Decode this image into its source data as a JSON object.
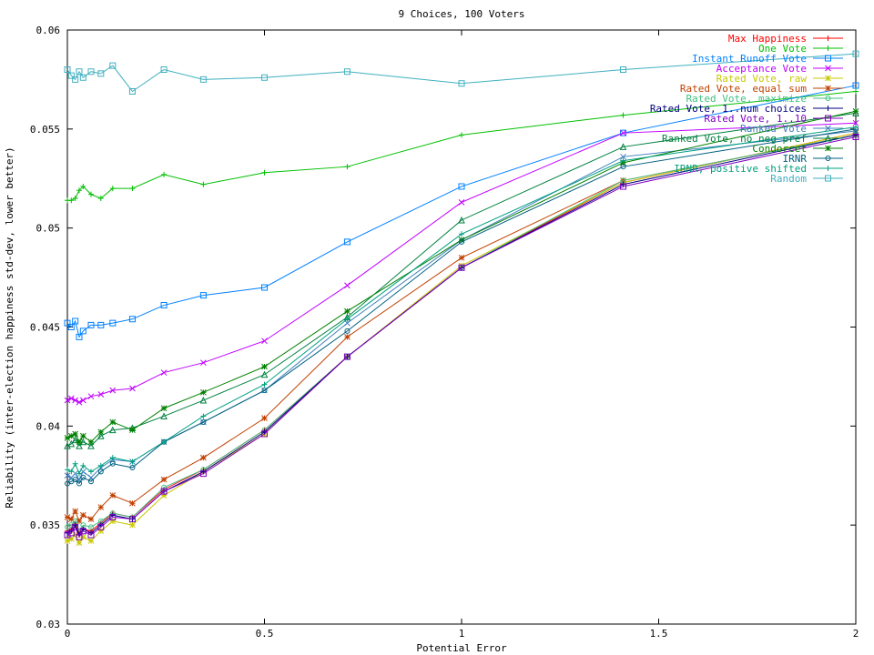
{
  "chart_data": {
    "type": "line",
    "title": "9 Choices, 100 Voters",
    "xlabel": "Potential Error",
    "ylabel": "Reliability (inter-election happiness std-dev, lower better)",
    "xlim": [
      0,
      2
    ],
    "ylim": [
      0.03,
      0.06
    ],
    "x_ticks": [
      "0",
      "0.5",
      "1",
      "1.5",
      "2"
    ],
    "y_ticks": [
      "0.03",
      "0.035",
      "0.04",
      "0.045",
      "0.05",
      "0.055",
      "0.06"
    ],
    "grid": false,
    "legend_position": "top-right",
    "x": [
      0,
      0.01,
      0.02,
      0.03,
      0.04,
      0.06,
      0.085,
      0.115,
      0.165,
      0.245,
      0.345,
      0.5,
      0.71,
      1.0,
      1.41,
      2.0
    ],
    "series": [
      {
        "name": "Max Happiness",
        "color": "#ff0000",
        "marker": "plus",
        "values": [
          0.0347,
          0.0348,
          0.0351,
          0.0346,
          0.0348,
          0.0347,
          0.0351,
          0.0356,
          0.0354,
          0.0368,
          0.0378,
          0.0398,
          0.0435,
          0.048,
          0.0523,
          0.0548
        ]
      },
      {
        "name": "One Vote",
        "color": "#00c000",
        "marker": "plus",
        "values": [
          0.0514,
          0.0514,
          0.0515,
          0.0519,
          0.0521,
          0.0517,
          0.0515,
          0.052,
          0.052,
          0.0527,
          0.0522,
          0.0528,
          0.0531,
          0.0547,
          0.0557,
          0.0569
        ]
      },
      {
        "name": "Instant Runoff Vote",
        "color": "#0080ff",
        "marker": "square",
        "values": [
          0.0452,
          0.045,
          0.0453,
          0.0445,
          0.0448,
          0.0451,
          0.0451,
          0.0452,
          0.0454,
          0.0461,
          0.0466,
          0.047,
          0.0493,
          0.0521,
          0.0548,
          0.0572
        ]
      },
      {
        "name": "Acceptance Vote",
        "color": "#c000ff",
        "marker": "x",
        "values": [
          0.0413,
          0.0414,
          0.0413,
          0.0412,
          0.0413,
          0.0415,
          0.0416,
          0.0418,
          0.0419,
          0.0427,
          0.0432,
          0.0443,
          0.0471,
          0.0513,
          0.0548,
          0.0553
        ]
      },
      {
        "name": "Rated Vote, raw",
        "color": "#c8c800",
        "marker": "star",
        "values": [
          0.0342,
          0.0343,
          0.0345,
          0.0341,
          0.0344,
          0.0342,
          0.0347,
          0.0352,
          0.035,
          0.0365,
          0.0377,
          0.0396,
          0.0435,
          0.0481,
          0.0523,
          0.0548
        ]
      },
      {
        "name": "Rated Vote, equal sum",
        "color": "#c04000",
        "marker": "star",
        "values": [
          0.0354,
          0.0353,
          0.0357,
          0.0352,
          0.0355,
          0.0353,
          0.0359,
          0.0365,
          0.0361,
          0.0373,
          0.0384,
          0.0404,
          0.0445,
          0.0485,
          0.0524,
          0.0547
        ]
      },
      {
        "name": "Rated Vote, maximize",
        "color": "#40c080",
        "marker": "circle",
        "values": [
          0.0349,
          0.035,
          0.0352,
          0.0347,
          0.035,
          0.0349,
          0.0352,
          0.0356,
          0.0354,
          0.0369,
          0.0378,
          0.0398,
          0.0435,
          0.048,
          0.0524,
          0.0547
        ]
      },
      {
        "name": "Rated Vote, 1..num choices",
        "color": "#000080",
        "marker": "plus",
        "values": [
          0.0346,
          0.0347,
          0.035,
          0.0345,
          0.0348,
          0.0346,
          0.035,
          0.0355,
          0.0353,
          0.0367,
          0.0377,
          0.0397,
          0.0435,
          0.048,
          0.0522,
          0.0547
        ]
      },
      {
        "name": "Rated Vote, 1..10",
        "color": "#8000c0",
        "marker": "square",
        "values": [
          0.0345,
          0.0346,
          0.0349,
          0.0344,
          0.0347,
          0.0345,
          0.0349,
          0.0354,
          0.0353,
          0.0367,
          0.0376,
          0.0396,
          0.0435,
          0.048,
          0.0521,
          0.0546
        ]
      },
      {
        "name": "Ranked Vote",
        "color": "#4080c0",
        "marker": "x",
        "values": [
          0.0375,
          0.0374,
          0.0376,
          0.0373,
          0.0377,
          0.0374,
          0.0379,
          0.0383,
          0.0382,
          0.0392,
          0.0402,
          0.0418,
          0.0452,
          0.0494,
          0.0536,
          0.0549
        ]
      },
      {
        "name": "Ranked Vote, no neg pref",
        "color": "#008040",
        "marker": "triangle",
        "values": [
          0.039,
          0.0391,
          0.0393,
          0.039,
          0.0392,
          0.039,
          0.0395,
          0.0398,
          0.0399,
          0.0405,
          0.0413,
          0.0426,
          0.0455,
          0.0504,
          0.0541,
          0.0558
        ]
      },
      {
        "name": "Condorcet",
        "color": "#008000",
        "marker": "star",
        "values": [
          0.0394,
          0.0395,
          0.0396,
          0.0392,
          0.0395,
          0.0392,
          0.0397,
          0.0402,
          0.0398,
          0.0409,
          0.0417,
          0.043,
          0.0458,
          0.0494,
          0.0533,
          0.0559
        ]
      },
      {
        "name": "IRNR",
        "color": "#006080",
        "marker": "circle",
        "values": [
          0.0371,
          0.0372,
          0.0373,
          0.0371,
          0.0374,
          0.0372,
          0.0377,
          0.0381,
          0.0379,
          0.0392,
          0.0402,
          0.0418,
          0.0448,
          0.0493,
          0.0531,
          0.055
        ]
      },
      {
        "name": "IRNR, positive shifted",
        "color": "#00a080",
        "marker": "plus",
        "values": [
          0.0378,
          0.0377,
          0.0381,
          0.0376,
          0.038,
          0.0377,
          0.038,
          0.0384,
          0.0382,
          0.0392,
          0.0405,
          0.0421,
          0.0454,
          0.0497,
          0.0534,
          0.0551
        ]
      },
      {
        "name": "Random",
        "color": "#40b0c0",
        "marker": "square",
        "values": [
          0.058,
          0.0577,
          0.0575,
          0.0579,
          0.0576,
          0.0579,
          0.0578,
          0.0582,
          0.0569,
          0.058,
          0.0575,
          0.0576,
          0.0579,
          0.0573,
          0.058,
          0.0588
        ]
      }
    ]
  }
}
